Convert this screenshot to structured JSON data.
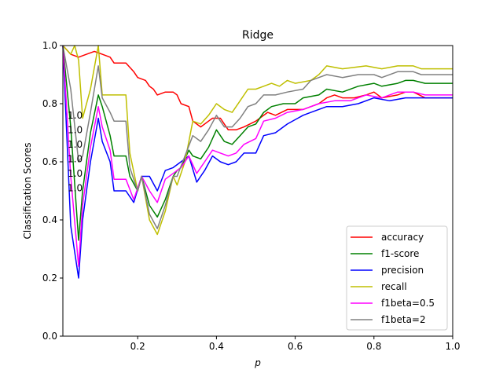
{
  "chart_data": {
    "type": "line",
    "title": "Ridge",
    "xlabel": "p",
    "ylabel": "Classification Scores",
    "xlim": [
      0.01,
      1.0
    ],
    "ylim": [
      0.0,
      1.0
    ],
    "xticks": [
      0.2,
      0.4,
      0.6,
      0.8,
      1.0
    ],
    "xtick_labels": [
      "0.2",
      "0.4",
      "0.6",
      "0.8",
      "1.0"
    ],
    "yticks": [
      0.0,
      0.2,
      0.4,
      0.6,
      0.8,
      1.0
    ],
    "ytick_labels": [
      "0.0",
      "0.2",
      "0.4",
      "0.6",
      "0.8",
      "1.0"
    ],
    "grid": false,
    "legend_position": "lower-right",
    "annotations": [
      {
        "text": "1.0",
        "x": 0.01,
        "y": 0.76,
        "color": "#808080"
      },
      {
        "text": "1.0",
        "x": 0.01,
        "y": 0.71,
        "color": "#ff00ff"
      },
      {
        "text": "1.0",
        "x": 0.01,
        "y": 0.66,
        "color": "#bfbf00"
      },
      {
        "text": "1.0",
        "x": 0.01,
        "y": 0.61,
        "color": "#0000ff"
      },
      {
        "text": "1.0",
        "x": 0.01,
        "y": 0.56,
        "color": "#008000"
      },
      {
        "text": "1.0",
        "x": 0.01,
        "y": 0.51,
        "color": "#ff0000"
      }
    ],
    "series": [
      {
        "name": "accuracy",
        "color": "#ff0000",
        "points": [
          [
            0.01,
            1.0
          ],
          [
            0.03,
            0.97
          ],
          [
            0.05,
            0.96
          ],
          [
            0.07,
            0.97
          ],
          [
            0.09,
            0.98
          ],
          [
            0.11,
            0.97
          ],
          [
            0.13,
            0.96
          ],
          [
            0.14,
            0.94
          ],
          [
            0.17,
            0.94
          ],
          [
            0.19,
            0.91
          ],
          [
            0.2,
            0.89
          ],
          [
            0.22,
            0.88
          ],
          [
            0.23,
            0.86
          ],
          [
            0.24,
            0.85
          ],
          [
            0.25,
            0.83
          ],
          [
            0.27,
            0.84
          ],
          [
            0.29,
            0.84
          ],
          [
            0.3,
            0.83
          ],
          [
            0.31,
            0.8
          ],
          [
            0.33,
            0.79
          ],
          [
            0.34,
            0.74
          ],
          [
            0.36,
            0.72
          ],
          [
            0.38,
            0.74
          ],
          [
            0.39,
            0.75
          ],
          [
            0.41,
            0.75
          ],
          [
            0.42,
            0.73
          ],
          [
            0.43,
            0.71
          ],
          [
            0.45,
            0.71
          ],
          [
            0.47,
            0.72
          ],
          [
            0.5,
            0.74
          ],
          [
            0.53,
            0.77
          ],
          [
            0.55,
            0.76
          ],
          [
            0.58,
            0.78
          ],
          [
            0.62,
            0.78
          ],
          [
            0.64,
            0.79
          ],
          [
            0.66,
            0.8
          ],
          [
            0.68,
            0.82
          ],
          [
            0.7,
            0.83
          ],
          [
            0.72,
            0.82
          ],
          [
            0.75,
            0.82
          ],
          [
            0.78,
            0.83
          ],
          [
            0.8,
            0.84
          ],
          [
            0.82,
            0.82
          ],
          [
            0.86,
            0.83
          ],
          [
            0.88,
            0.84
          ],
          [
            0.9,
            0.84
          ],
          [
            0.93,
            0.82
          ],
          [
            1.0,
            0.82
          ]
        ]
      },
      {
        "name": "f1-score",
        "color": "#008000",
        "points": [
          [
            0.01,
            1.0
          ],
          [
            0.03,
            0.72
          ],
          [
            0.05,
            0.33
          ],
          [
            0.06,
            0.5
          ],
          [
            0.08,
            0.7
          ],
          [
            0.1,
            0.83
          ],
          [
            0.11,
            0.79
          ],
          [
            0.13,
            0.69
          ],
          [
            0.14,
            0.62
          ],
          [
            0.17,
            0.62
          ],
          [
            0.18,
            0.55
          ],
          [
            0.2,
            0.5
          ],
          [
            0.21,
            0.55
          ],
          [
            0.23,
            0.45
          ],
          [
            0.25,
            0.41
          ],
          [
            0.27,
            0.47
          ],
          [
            0.29,
            0.55
          ],
          [
            0.3,
            0.57
          ],
          [
            0.31,
            0.58
          ],
          [
            0.33,
            0.64
          ],
          [
            0.34,
            0.62
          ],
          [
            0.36,
            0.61
          ],
          [
            0.38,
            0.65
          ],
          [
            0.4,
            0.71
          ],
          [
            0.42,
            0.67
          ],
          [
            0.44,
            0.66
          ],
          [
            0.46,
            0.69
          ],
          [
            0.48,
            0.72
          ],
          [
            0.5,
            0.73
          ],
          [
            0.52,
            0.77
          ],
          [
            0.54,
            0.79
          ],
          [
            0.57,
            0.8
          ],
          [
            0.6,
            0.8
          ],
          [
            0.62,
            0.82
          ],
          [
            0.66,
            0.83
          ],
          [
            0.68,
            0.85
          ],
          [
            0.72,
            0.84
          ],
          [
            0.76,
            0.86
          ],
          [
            0.8,
            0.87
          ],
          [
            0.82,
            0.86
          ],
          [
            0.86,
            0.87
          ],
          [
            0.88,
            0.88
          ],
          [
            0.9,
            0.88
          ],
          [
            0.93,
            0.87
          ],
          [
            1.0,
            0.87
          ]
        ]
      },
      {
        "name": "precision",
        "color": "#0000ff",
        "points": [
          [
            0.01,
            1.0
          ],
          [
            0.03,
            0.38
          ],
          [
            0.05,
            0.2
          ],
          [
            0.06,
            0.4
          ],
          [
            0.08,
            0.6
          ],
          [
            0.1,
            0.75
          ],
          [
            0.11,
            0.67
          ],
          [
            0.13,
            0.6
          ],
          [
            0.14,
            0.5
          ],
          [
            0.17,
            0.5
          ],
          [
            0.19,
            0.46
          ],
          [
            0.21,
            0.55
          ],
          [
            0.23,
            0.55
          ],
          [
            0.25,
            0.5
          ],
          [
            0.27,
            0.57
          ],
          [
            0.29,
            0.58
          ],
          [
            0.31,
            0.6
          ],
          [
            0.33,
            0.62
          ],
          [
            0.35,
            0.53
          ],
          [
            0.37,
            0.57
          ],
          [
            0.39,
            0.62
          ],
          [
            0.41,
            0.6
          ],
          [
            0.43,
            0.59
          ],
          [
            0.45,
            0.6
          ],
          [
            0.47,
            0.63
          ],
          [
            0.5,
            0.63
          ],
          [
            0.52,
            0.69
          ],
          [
            0.55,
            0.7
          ],
          [
            0.58,
            0.73
          ],
          [
            0.62,
            0.76
          ],
          [
            0.64,
            0.77
          ],
          [
            0.68,
            0.79
          ],
          [
            0.72,
            0.79
          ],
          [
            0.76,
            0.8
          ],
          [
            0.8,
            0.82
          ],
          [
            0.84,
            0.81
          ],
          [
            0.88,
            0.82
          ],
          [
            0.92,
            0.82
          ],
          [
            1.0,
            0.82
          ]
        ]
      },
      {
        "name": "recall",
        "color": "#bfbf00",
        "points": [
          [
            0.01,
            1.0
          ],
          [
            0.03,
            0.97
          ],
          [
            0.04,
            1.0
          ],
          [
            0.05,
            0.95
          ],
          [
            0.06,
            0.75
          ],
          [
            0.08,
            0.85
          ],
          [
            0.1,
            1.0
          ],
          [
            0.11,
            0.83
          ],
          [
            0.13,
            0.83
          ],
          [
            0.17,
            0.83
          ],
          [
            0.18,
            0.63
          ],
          [
            0.2,
            0.5
          ],
          [
            0.21,
            0.55
          ],
          [
            0.23,
            0.4
          ],
          [
            0.25,
            0.35
          ],
          [
            0.27,
            0.43
          ],
          [
            0.29,
            0.55
          ],
          [
            0.3,
            0.52
          ],
          [
            0.32,
            0.6
          ],
          [
            0.34,
            0.74
          ],
          [
            0.36,
            0.73
          ],
          [
            0.38,
            0.76
          ],
          [
            0.4,
            0.8
          ],
          [
            0.42,
            0.78
          ],
          [
            0.44,
            0.77
          ],
          [
            0.46,
            0.81
          ],
          [
            0.48,
            0.85
          ],
          [
            0.5,
            0.85
          ],
          [
            0.52,
            0.86
          ],
          [
            0.54,
            0.87
          ],
          [
            0.56,
            0.86
          ],
          [
            0.58,
            0.88
          ],
          [
            0.6,
            0.87
          ],
          [
            0.64,
            0.88
          ],
          [
            0.66,
            0.9
          ],
          [
            0.68,
            0.93
          ],
          [
            0.72,
            0.92
          ],
          [
            0.78,
            0.93
          ],
          [
            0.82,
            0.92
          ],
          [
            0.86,
            0.93
          ],
          [
            0.9,
            0.93
          ],
          [
            0.92,
            0.92
          ],
          [
            1.0,
            0.92
          ]
        ]
      },
      {
        "name": "f1beta=0.5",
        "color": "#ff00ff",
        "points": [
          [
            0.01,
            1.0
          ],
          [
            0.03,
            0.55
          ],
          [
            0.05,
            0.24
          ],
          [
            0.06,
            0.45
          ],
          [
            0.08,
            0.65
          ],
          [
            0.1,
            0.79
          ],
          [
            0.11,
            0.72
          ],
          [
            0.13,
            0.64
          ],
          [
            0.14,
            0.54
          ],
          [
            0.17,
            0.54
          ],
          [
            0.19,
            0.47
          ],
          [
            0.21,
            0.55
          ],
          [
            0.23,
            0.5
          ],
          [
            0.25,
            0.46
          ],
          [
            0.27,
            0.54
          ],
          [
            0.29,
            0.56
          ],
          [
            0.31,
            0.58
          ],
          [
            0.33,
            0.62
          ],
          [
            0.35,
            0.56
          ],
          [
            0.37,
            0.6
          ],
          [
            0.39,
            0.64
          ],
          [
            0.41,
            0.63
          ],
          [
            0.43,
            0.62
          ],
          [
            0.45,
            0.63
          ],
          [
            0.47,
            0.66
          ],
          [
            0.5,
            0.68
          ],
          [
            0.52,
            0.74
          ],
          [
            0.55,
            0.75
          ],
          [
            0.58,
            0.77
          ],
          [
            0.62,
            0.78
          ],
          [
            0.66,
            0.8
          ],
          [
            0.7,
            0.81
          ],
          [
            0.74,
            0.81
          ],
          [
            0.78,
            0.83
          ],
          [
            0.82,
            0.82
          ],
          [
            0.86,
            0.84
          ],
          [
            0.9,
            0.84
          ],
          [
            0.93,
            0.83
          ],
          [
            1.0,
            0.83
          ]
        ]
      },
      {
        "name": "f1beta=2",
        "color": "#808080",
        "points": [
          [
            0.01,
            1.0
          ],
          [
            0.03,
            0.85
          ],
          [
            0.05,
            0.6
          ],
          [
            0.06,
            0.62
          ],
          [
            0.08,
            0.77
          ],
          [
            0.1,
            0.93
          ],
          [
            0.11,
            0.82
          ],
          [
            0.13,
            0.77
          ],
          [
            0.14,
            0.74
          ],
          [
            0.17,
            0.74
          ],
          [
            0.18,
            0.58
          ],
          [
            0.2,
            0.5
          ],
          [
            0.21,
            0.55
          ],
          [
            0.23,
            0.42
          ],
          [
            0.25,
            0.37
          ],
          [
            0.27,
            0.45
          ],
          [
            0.29,
            0.55
          ],
          [
            0.3,
            0.55
          ],
          [
            0.32,
            0.62
          ],
          [
            0.34,
            0.69
          ],
          [
            0.36,
            0.67
          ],
          [
            0.38,
            0.71
          ],
          [
            0.4,
            0.76
          ],
          [
            0.42,
            0.72
          ],
          [
            0.44,
            0.72
          ],
          [
            0.46,
            0.75
          ],
          [
            0.48,
            0.79
          ],
          [
            0.5,
            0.8
          ],
          [
            0.52,
            0.83
          ],
          [
            0.55,
            0.83
          ],
          [
            0.58,
            0.84
          ],
          [
            0.62,
            0.85
          ],
          [
            0.64,
            0.88
          ],
          [
            0.66,
            0.89
          ],
          [
            0.68,
            0.9
          ],
          [
            0.72,
            0.89
          ],
          [
            0.76,
            0.9
          ],
          [
            0.8,
            0.9
          ],
          [
            0.82,
            0.89
          ],
          [
            0.86,
            0.91
          ],
          [
            0.9,
            0.91
          ],
          [
            0.92,
            0.9
          ],
          [
            1.0,
            0.9
          ]
        ]
      }
    ]
  }
}
